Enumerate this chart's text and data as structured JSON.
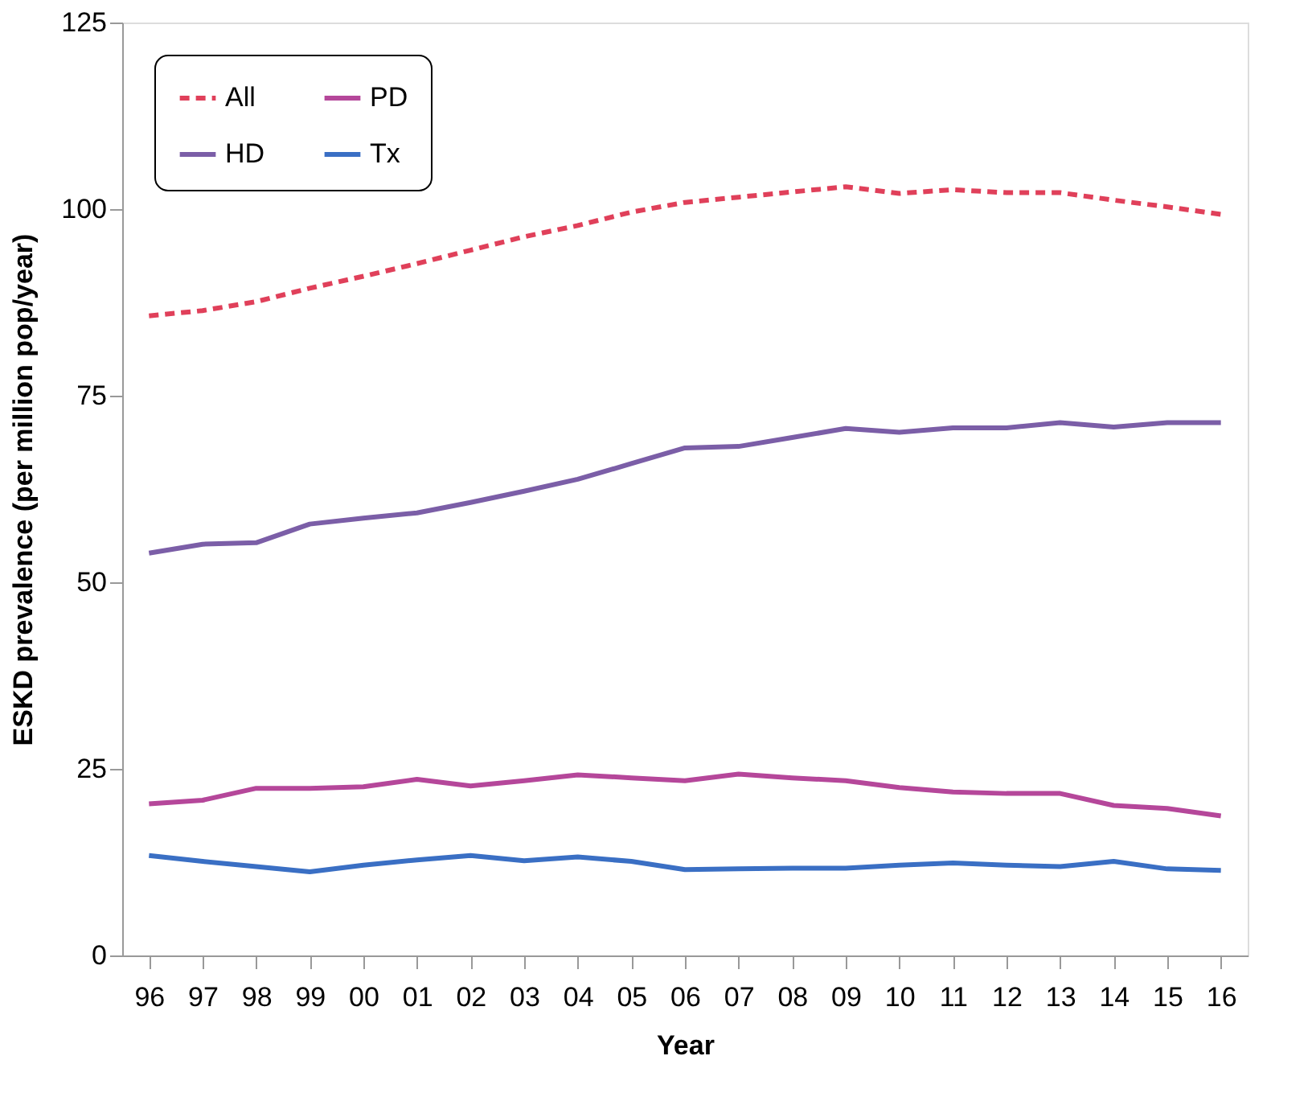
{
  "chart_data": {
    "type": "line",
    "xlabel": "Year",
    "ylabel": "ESKD prevalence (per million pop/year)",
    "categories": [
      "96",
      "97",
      "98",
      "99",
      "00",
      "01",
      "02",
      "03",
      "04",
      "05",
      "06",
      "07",
      "08",
      "09",
      "10",
      "11",
      "12",
      "13",
      "14",
      "15",
      "16"
    ],
    "ylim": [
      0,
      125
    ],
    "yticks": [
      0,
      25,
      50,
      75,
      100,
      125
    ],
    "grid": false,
    "legend": "top left",
    "marker": "none",
    "series": [
      {
        "name": "All",
        "color": "#e0405a",
        "line_style": "dashed",
        "values": [
          85.7,
          86.4,
          87.6,
          89.4,
          91.0,
          92.7,
          94.5,
          96.3,
          97.8,
          99.6,
          100.9,
          101.6,
          102.3,
          103.0,
          102.1,
          102.6,
          102.2,
          102.2,
          101.2,
          100.3,
          99.3
        ]
      },
      {
        "name": "HD",
        "color": "#7b5ea7",
        "line_style": "solid",
        "values": [
          53.9,
          55.1,
          55.3,
          57.8,
          58.6,
          59.3,
          60.7,
          62.2,
          63.8,
          65.9,
          68.0,
          68.2,
          69.4,
          70.6,
          70.1,
          70.7,
          70.7,
          71.4,
          70.8,
          71.4,
          71.4
        ]
      },
      {
        "name": "PD",
        "color": "#b5479a",
        "line_style": "solid",
        "values": [
          20.3,
          20.8,
          22.4,
          22.4,
          22.6,
          23.6,
          22.7,
          23.4,
          24.2,
          23.8,
          23.4,
          24.3,
          23.8,
          23.4,
          22.5,
          21.9,
          21.7,
          21.7,
          20.1,
          19.7,
          18.7
        ]
      },
      {
        "name": "Tx",
        "color": "#3a6fc4",
        "line_style": "solid",
        "values": [
          13.4,
          12.6,
          11.9,
          11.2,
          12.1,
          12.8,
          13.4,
          12.7,
          13.2,
          12.6,
          11.5,
          11.6,
          11.7,
          11.7,
          12.1,
          12.4,
          12.1,
          11.9,
          12.6,
          11.6,
          11.4
        ]
      }
    ]
  }
}
